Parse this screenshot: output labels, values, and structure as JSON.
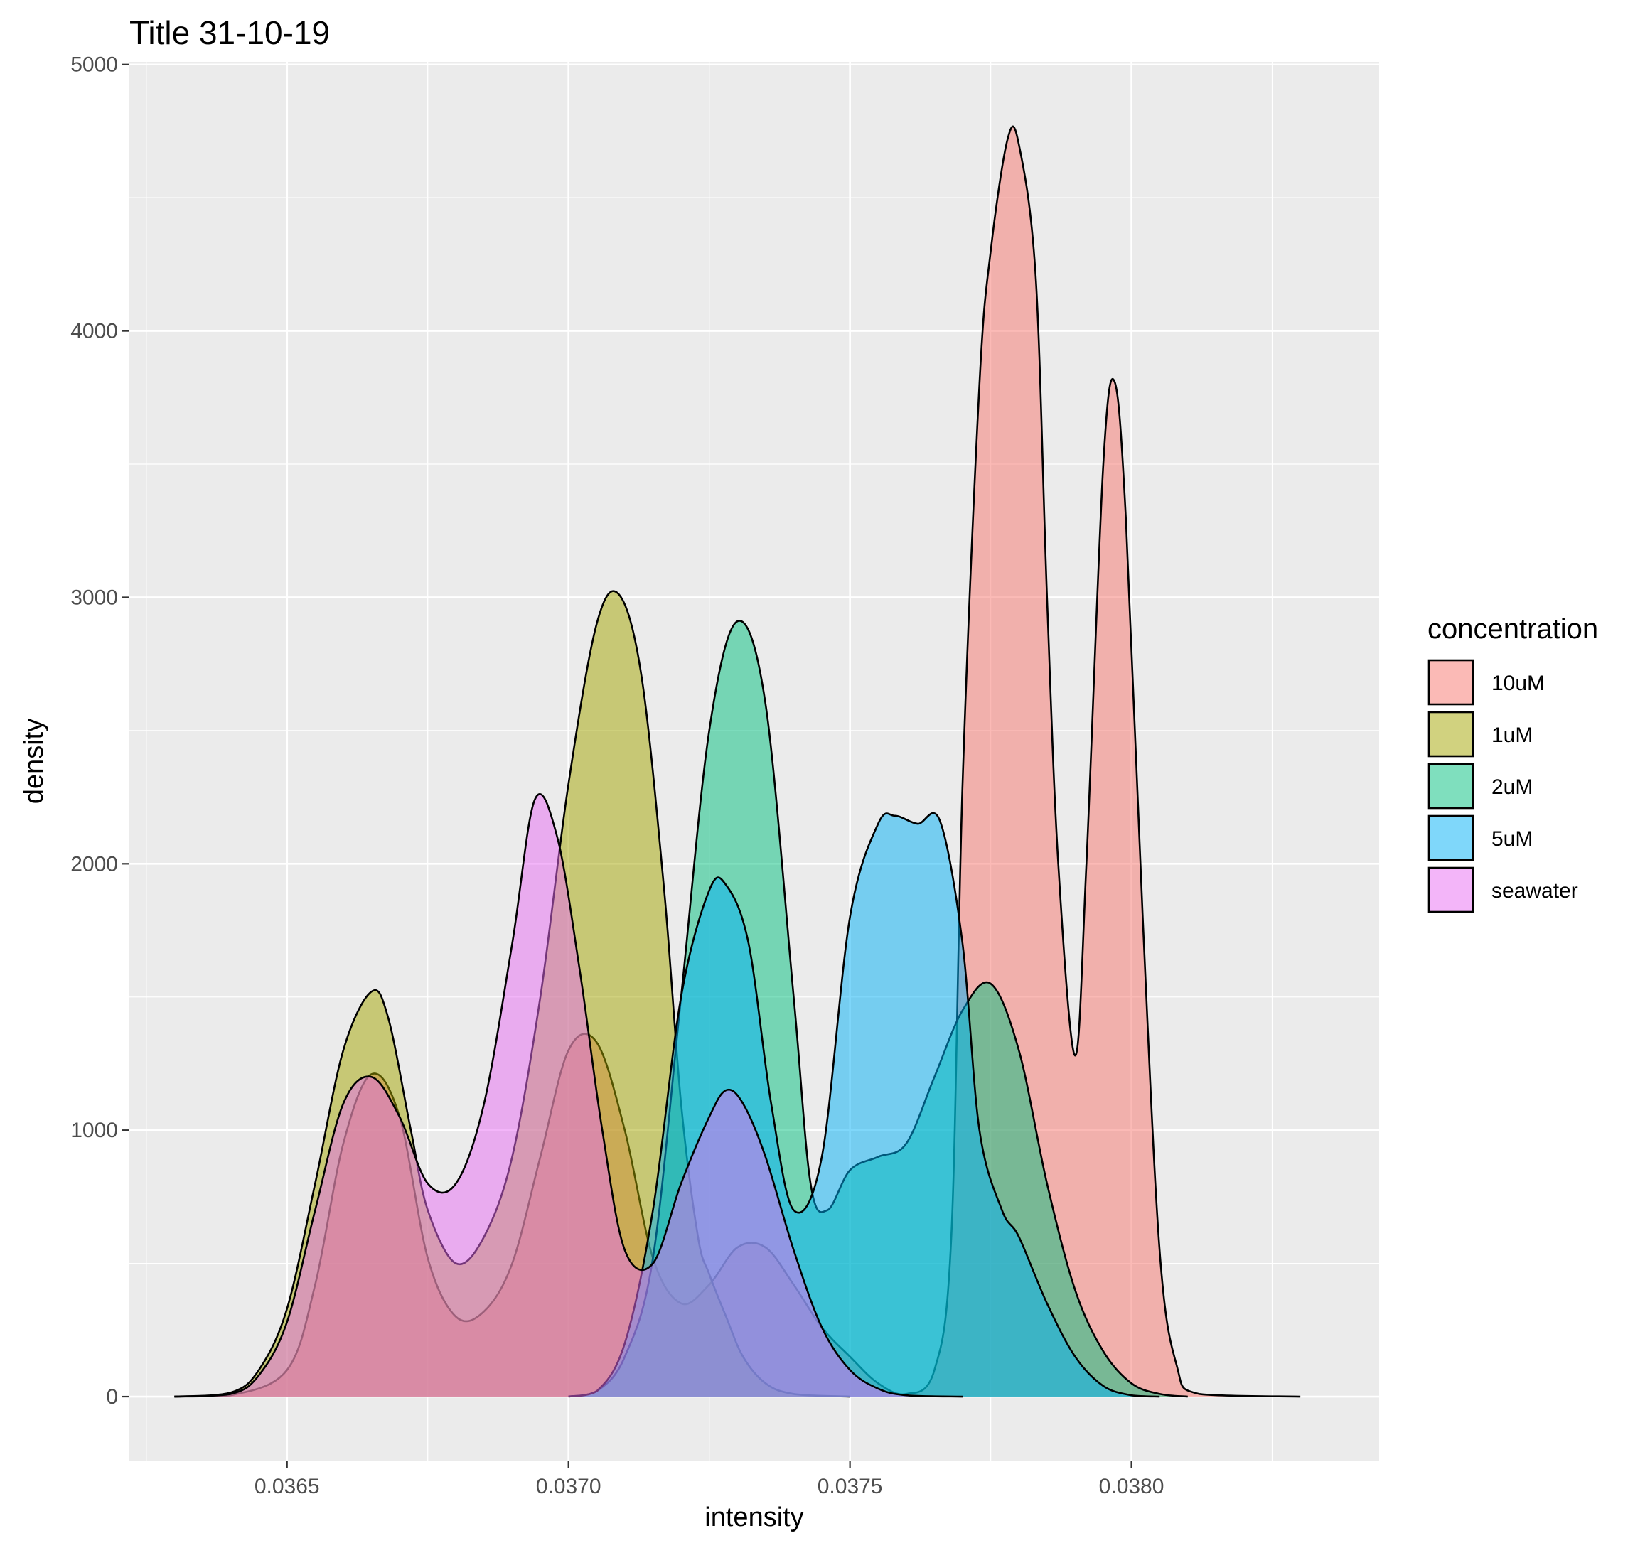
{
  "chart_data": {
    "type": "area",
    "title": "Title 31-10-19",
    "xlabel": "intensity",
    "ylabel": "density",
    "xlim": [
      0.03622,
      0.03844
    ],
    "ylim": [
      -240,
      5010
    ],
    "x_ticks": [
      0.0365,
      0.037,
      0.0375,
      0.038
    ],
    "x_tick_labels": [
      "0.0365",
      "0.0370",
      "0.0375",
      "0.0380"
    ],
    "y_ticks": [
      0,
      1000,
      2000,
      3000,
      4000,
      5000
    ],
    "y_tick_labels": [
      "0",
      "1000",
      "2000",
      "3000",
      "4000",
      "5000"
    ],
    "grid": true,
    "legend": {
      "title": "concentration",
      "position": "right"
    },
    "series": [
      {
        "name": "10uM",
        "color": "#F8766D",
        "points": [
          [
            0.0363,
            0
          ],
          [
            0.0364,
            5
          ],
          [
            0.0365,
            100
          ],
          [
            0.03655,
            420
          ],
          [
            0.0366,
            950
          ],
          [
            0.03665,
            1210
          ],
          [
            0.0367,
            1050
          ],
          [
            0.03675,
            520
          ],
          [
            0.0368,
            300
          ],
          [
            0.03685,
            320
          ],
          [
            0.0369,
            500
          ],
          [
            0.03695,
            900
          ],
          [
            0.037,
            1300
          ],
          [
            0.03705,
            1330
          ],
          [
            0.0371,
            1000
          ],
          [
            0.03715,
            520
          ],
          [
            0.0372,
            350
          ],
          [
            0.03725,
            420
          ],
          [
            0.0373,
            560
          ],
          [
            0.03735,
            560
          ],
          [
            0.0374,
            420
          ],
          [
            0.03745,
            260
          ],
          [
            0.0375,
            150
          ],
          [
            0.03755,
            50
          ],
          [
            0.0376,
            10
          ],
          [
            0.03765,
            100
          ],
          [
            0.03768,
            600
          ],
          [
            0.0377,
            2300
          ],
          [
            0.03773,
            3800
          ],
          [
            0.03775,
            4300
          ],
          [
            0.03778,
            4720
          ],
          [
            0.0378,
            4700
          ],
          [
            0.03783,
            4200
          ],
          [
            0.03785,
            3000
          ],
          [
            0.03787,
            2000
          ],
          [
            0.0379,
            1280
          ],
          [
            0.03792,
            2000
          ],
          [
            0.03795,
            3500
          ],
          [
            0.03797,
            3810
          ],
          [
            0.03799,
            3300
          ],
          [
            0.03802,
            1800
          ],
          [
            0.03805,
            550
          ],
          [
            0.03808,
            120
          ],
          [
            0.03812,
            10
          ],
          [
            0.0383,
            0
          ]
        ]
      },
      {
        "name": "1uM",
        "color": "#A3A500",
        "points": [
          [
            0.0363,
            0
          ],
          [
            0.0364,
            15
          ],
          [
            0.03645,
            100
          ],
          [
            0.0365,
            330
          ],
          [
            0.03655,
            800
          ],
          [
            0.0366,
            1300
          ],
          [
            0.03665,
            1520
          ],
          [
            0.03668,
            1420
          ],
          [
            0.03672,
            1000
          ],
          [
            0.03675,
            700
          ],
          [
            0.0368,
            500
          ],
          [
            0.03685,
            600
          ],
          [
            0.0369,
            900
          ],
          [
            0.03695,
            1500
          ],
          [
            0.037,
            2300
          ],
          [
            0.03705,
            2900
          ],
          [
            0.03709,
            3010
          ],
          [
            0.03713,
            2700
          ],
          [
            0.03717,
            1900
          ],
          [
            0.0372,
            1100
          ],
          [
            0.03723,
            600
          ],
          [
            0.03725,
            460
          ],
          [
            0.03728,
            300
          ],
          [
            0.03731,
            150
          ],
          [
            0.03735,
            50
          ],
          [
            0.0374,
            10
          ],
          [
            0.0375,
            0
          ]
        ]
      },
      {
        "name": "2uM",
        "color": "#00BF7D",
        "points": [
          [
            0.037,
            0
          ],
          [
            0.03705,
            20
          ],
          [
            0.0371,
            150
          ],
          [
            0.03715,
            520
          ],
          [
            0.0372,
            1500
          ],
          [
            0.03725,
            2500
          ],
          [
            0.0373,
            2910
          ],
          [
            0.03735,
            2600
          ],
          [
            0.0374,
            1500
          ],
          [
            0.03743,
            800
          ],
          [
            0.03746,
            700
          ],
          [
            0.0375,
            850
          ],
          [
            0.03755,
            900
          ],
          [
            0.0376,
            950
          ],
          [
            0.03765,
            1200
          ],
          [
            0.0377,
            1450
          ],
          [
            0.03775,
            1550
          ],
          [
            0.0378,
            1300
          ],
          [
            0.03785,
            800
          ],
          [
            0.0379,
            400
          ],
          [
            0.03795,
            170
          ],
          [
            0.038,
            50
          ],
          [
            0.03805,
            10
          ],
          [
            0.0381,
            0
          ]
        ]
      },
      {
        "name": "5uM",
        "color": "#00B0F6",
        "points": [
          [
            0.037,
            0
          ],
          [
            0.03705,
            20
          ],
          [
            0.0371,
            200
          ],
          [
            0.03715,
            700
          ],
          [
            0.0372,
            1500
          ],
          [
            0.03725,
            1900
          ],
          [
            0.03728,
            1920
          ],
          [
            0.03732,
            1700
          ],
          [
            0.03736,
            1100
          ],
          [
            0.0374,
            700
          ],
          [
            0.03745,
            900
          ],
          [
            0.0375,
            1800
          ],
          [
            0.03755,
            2150
          ],
          [
            0.03758,
            2180
          ],
          [
            0.03762,
            2150
          ],
          [
            0.03766,
            2160
          ],
          [
            0.0377,
            1700
          ],
          [
            0.03773,
            1000
          ],
          [
            0.03777,
            700
          ],
          [
            0.0378,
            600
          ],
          [
            0.03785,
            350
          ],
          [
            0.0379,
            150
          ],
          [
            0.03795,
            40
          ],
          [
            0.038,
            5
          ],
          [
            0.03805,
            0
          ]
        ]
      },
      {
        "name": "seawater",
        "color": "#E76BF3",
        "points": [
          [
            0.0363,
            0
          ],
          [
            0.0364,
            10
          ],
          [
            0.03645,
            80
          ],
          [
            0.0365,
            280
          ],
          [
            0.03655,
            700
          ],
          [
            0.0366,
            1100
          ],
          [
            0.03665,
            1200
          ],
          [
            0.0367,
            1050
          ],
          [
            0.03675,
            800
          ],
          [
            0.0368,
            800
          ],
          [
            0.03685,
            1100
          ],
          [
            0.0369,
            1700
          ],
          [
            0.03694,
            2240
          ],
          [
            0.03698,
            2100
          ],
          [
            0.03702,
            1600
          ],
          [
            0.03706,
            1000
          ],
          [
            0.0371,
            550
          ],
          [
            0.03715,
            500
          ],
          [
            0.0372,
            800
          ],
          [
            0.03725,
            1050
          ],
          [
            0.03728,
            1150
          ],
          [
            0.03731,
            1100
          ],
          [
            0.03735,
            900
          ],
          [
            0.0374,
            550
          ],
          [
            0.03745,
            260
          ],
          [
            0.0375,
            100
          ],
          [
            0.03755,
            30
          ],
          [
            0.0376,
            5
          ],
          [
            0.0377,
            0
          ]
        ]
      }
    ]
  }
}
